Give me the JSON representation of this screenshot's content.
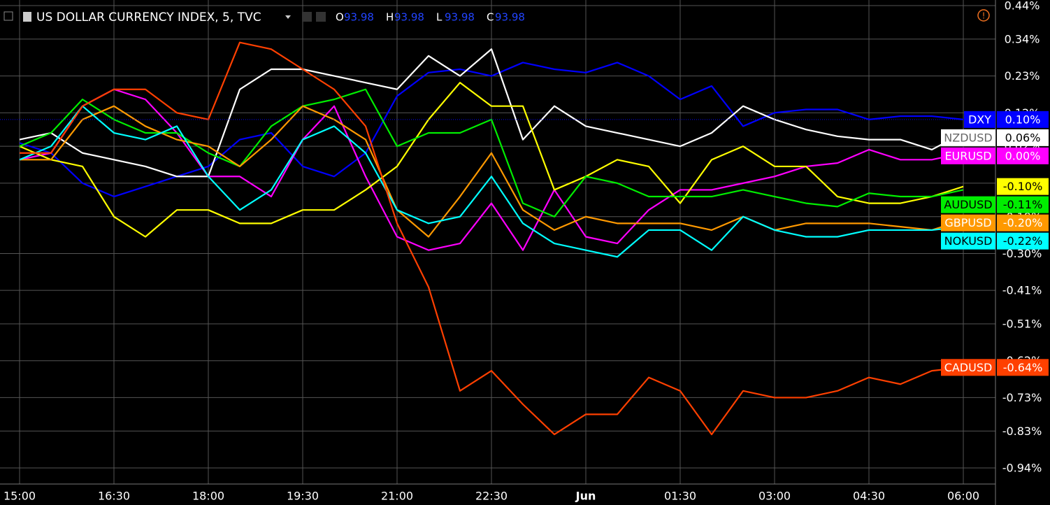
{
  "chart_data": {
    "type": "line",
    "title": "US DOLLAR CURRENCY INDEX, 5, TVC",
    "ohlc": [
      {
        "label": "O",
        "value": 93.98
      },
      {
        "label": "H",
        "value": 93.98
      },
      {
        "label": "L",
        "value": 93.98
      },
      {
        "label": "C",
        "value": 93.98
      }
    ],
    "x": [
      "15:00",
      "15:30",
      "16:00",
      "16:30",
      "17:00",
      "17:30",
      "18:00",
      "18:30",
      "19:00",
      "19:30",
      "20:00",
      "20:30",
      "21:00",
      "21:30",
      "22:00",
      "22:30",
      "23:00",
      "23:30",
      "00:00",
      "00:30",
      "01:00",
      "01:30",
      "02:00",
      "02:30",
      "03:00",
      "03:30",
      "04:00",
      "04:30",
      "05:00",
      "05:30",
      "06:00"
    ],
    "xticks": [
      "15:00",
      "16:30",
      "18:00",
      "19:30",
      "21:00",
      "22:30",
      {
        "value": "00:00",
        "label": "Jun"
      },
      "01:30",
      "03:00",
      "04:30",
      "06:00"
    ],
    "ylim": [
      -0.97,
      0.44
    ],
    "yticks": [
      {
        "value": 0.44,
        "label": "0.44%"
      },
      {
        "value": 0.34,
        "label": "0.34%"
      },
      {
        "value": 0.23,
        "label": "0.23%"
      },
      {
        "value": 0.12,
        "label": "0.12%"
      },
      {
        "value": 0.02,
        "label": "0.02%"
      },
      {
        "value": -0.09,
        "label": "-0.09%"
      },
      {
        "value": -0.19,
        "label": "-0.19%"
      },
      {
        "value": -0.3,
        "label": "-0.30%"
      },
      {
        "value": -0.41,
        "label": "-0.41%"
      },
      {
        "value": -0.51,
        "label": "-0.51%"
      },
      {
        "value": -0.62,
        "label": "-0.62%"
      },
      {
        "value": -0.73,
        "label": "-0.73%"
      },
      {
        "value": -0.83,
        "label": "-0.83%"
      },
      {
        "value": -0.94,
        "label": "-0.94%"
      }
    ],
    "grid": true,
    "series": [
      {
        "name": "DXY",
        "color": "#0000ff",
        "last_label": "0.10%",
        "values": [
          0.03,
          0.0,
          -0.09,
          -0.13,
          -0.1,
          -0.07,
          -0.04,
          0.04,
          0.06,
          -0.04,
          -0.07,
          0.0,
          0.17,
          0.24,
          0.25,
          0.23,
          0.27,
          0.25,
          0.24,
          0.27,
          0.23,
          0.16,
          0.2,
          0.08,
          0.12,
          0.13,
          0.13,
          0.1,
          0.11,
          0.11,
          0.1
        ]
      },
      {
        "name": "NZDUSD",
        "color": "#ffffff",
        "last_label": "0.06%",
        "values": [
          0.04,
          0.06,
          0.0,
          -0.02,
          -0.04,
          -0.07,
          -0.07,
          0.19,
          0.25,
          0.25,
          0.23,
          0.21,
          0.19,
          0.29,
          0.23,
          0.31,
          0.04,
          0.14,
          0.08,
          0.06,
          0.04,
          0.02,
          0.06,
          0.14,
          0.1,
          0.07,
          0.05,
          0.04,
          0.04,
          0.01,
          0.06
        ]
      },
      {
        "name": "EURUSD",
        "color": "#ff00ff",
        "last_label": "0.00%",
        "values": [
          -0.02,
          0.0,
          0.14,
          0.19,
          0.16,
          0.06,
          -0.07,
          -0.07,
          -0.13,
          0.04,
          0.14,
          -0.07,
          -0.25,
          -0.29,
          -0.27,
          -0.15,
          -0.29,
          -0.11,
          -0.25,
          -0.27,
          -0.17,
          -0.11,
          -0.11,
          -0.09,
          -0.07,
          -0.04,
          -0.03,
          0.01,
          -0.02,
          -0.02,
          0.0
        ]
      },
      {
        "color": "#ffff00",
        "last_label": "-0.10%",
        "values": [
          0.02,
          -0.02,
          -0.04,
          -0.19,
          -0.25,
          -0.17,
          -0.17,
          -0.21,
          -0.21,
          -0.17,
          -0.17,
          -0.11,
          -0.04,
          0.1,
          0.21,
          0.14,
          0.14,
          -0.11,
          -0.07,
          -0.02,
          -0.04,
          -0.15,
          -0.02,
          0.02,
          -0.04,
          -0.04,
          -0.13,
          -0.15,
          -0.15,
          -0.13,
          -0.1
        ]
      },
      {
        "name": "AUDUSD",
        "color": "#00ee00",
        "last_label": "-0.11%",
        "values": [
          0.02,
          0.06,
          0.16,
          0.1,
          0.06,
          0.06,
          0.0,
          -0.04,
          0.08,
          0.14,
          0.16,
          0.19,
          0.02,
          0.06,
          0.06,
          0.1,
          -0.15,
          -0.19,
          -0.07,
          -0.09,
          -0.13,
          -0.13,
          -0.13,
          -0.11,
          -0.13,
          -0.15,
          -0.16,
          -0.12,
          -0.13,
          -0.13,
          -0.11
        ]
      },
      {
        "name": "GBPUSD",
        "color": "#ff9900",
        "last_label": "-0.20%",
        "values": [
          -0.02,
          -0.02,
          0.1,
          0.14,
          0.08,
          0.04,
          0.02,
          -0.04,
          0.04,
          0.14,
          0.1,
          0.04,
          -0.17,
          -0.25,
          -0.13,
          0.0,
          -0.17,
          -0.23,
          -0.19,
          -0.21,
          -0.21,
          -0.21,
          -0.23,
          -0.19,
          -0.23,
          -0.21,
          -0.21,
          -0.21,
          -0.22,
          -0.23,
          -0.2
        ]
      },
      {
        "name": "NOKUSD",
        "color": "#00ffff",
        "last_label": "-0.22%",
        "values": [
          -0.02,
          0.02,
          0.14,
          0.06,
          0.04,
          0.08,
          -0.07,
          -0.17,
          -0.11,
          0.04,
          0.08,
          0.0,
          -0.17,
          -0.21,
          -0.19,
          -0.07,
          -0.21,
          -0.27,
          -0.29,
          -0.31,
          -0.23,
          -0.23,
          -0.29,
          -0.19,
          -0.23,
          -0.25,
          -0.25,
          -0.23,
          -0.23,
          -0.23,
          -0.22
        ]
      },
      {
        "name": "CADUSD",
        "color": "#ff4000",
        "last_label": "-0.64%",
        "values": [
          0.0,
          0.0,
          0.14,
          0.19,
          0.19,
          0.12,
          0.1,
          0.33,
          0.31,
          0.25,
          0.19,
          0.08,
          -0.21,
          -0.4,
          -0.71,
          -0.65,
          -0.75,
          -0.84,
          -0.78,
          -0.78,
          -0.67,
          -0.71,
          -0.84,
          -0.71,
          -0.73,
          -0.73,
          -0.71,
          -0.67,
          -0.69,
          -0.65,
          -0.64
        ]
      }
    ]
  }
}
